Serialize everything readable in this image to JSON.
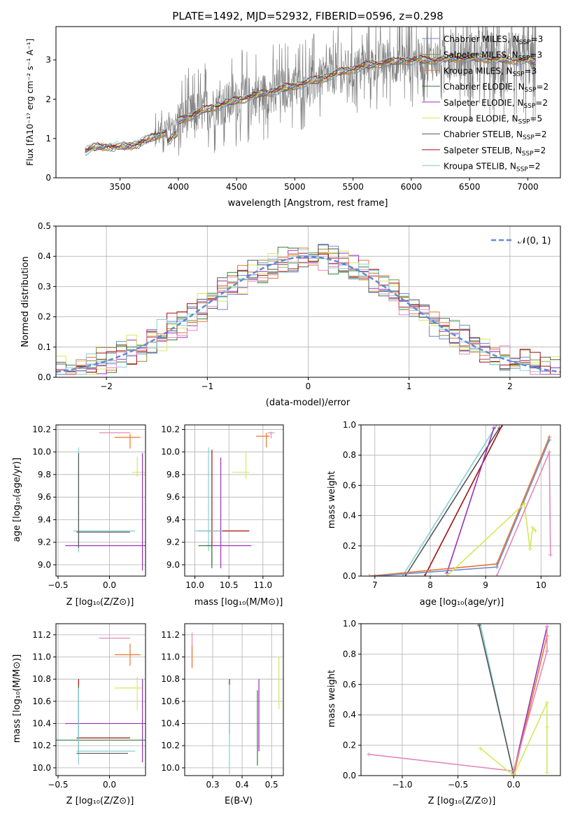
{
  "figure_title": "PLATE=1492, MJD=52932, FIBERID=0596, z=0.298",
  "colors": {
    "Chabrier MILES": "#6a8ad6",
    "Salpeter MILES": "#8a8a3a",
    "Kroupa MILES": "#e8762c",
    "Chabrier ELODIE": "#3a7a3a",
    "Salpeter ELODIE": "#9b30b8",
    "Kroupa ELODIE": "#d4e85a",
    "Chabrier STELIB": "#555555",
    "Salpeter STELIB": "#a01010",
    "Kroupa STELIB": "#86cfd6",
    "Extra": "#e08ab8",
    "data": "#808080",
    "normal_curve": "#5b8bd6"
  },
  "chart_data": [
    {
      "id": "spectrum",
      "type": "line",
      "title": "PLATE=1492, MJD=52932, FIBERID=0596, z=0.298",
      "xlabel": "wavelength [Angstrom, rest frame]",
      "ylabel": "Flux [fλ10⁻¹⁷ erg cm⁻² s⁻¹ A⁻¹]",
      "xlim": [
        2950,
        7280
      ],
      "ylim": [
        0,
        3.85
      ],
      "xticks": [
        "3500",
        "4000",
        "4500",
        "5000",
        "5500",
        "6000",
        "6500",
        "7000"
      ],
      "xtick_values": [
        3500,
        4000,
        4500,
        5000,
        5500,
        6000,
        6500,
        7000
      ],
      "yticks": [
        "0",
        "1",
        "2",
        "3"
      ],
      "ytick_values": [
        0,
        1,
        2,
        3
      ],
      "grid": false,
      "legend_position": "top-right",
      "legend": [
        {
          "name": "Chabrier MILES",
          "nssp": "3"
        },
        {
          "name": "Salpeter MILES",
          "nssp": "3"
        },
        {
          "name": "Kroupa MILES",
          "nssp": "3"
        },
        {
          "name": "Chabrier ELODIE",
          "nssp": "2"
        },
        {
          "name": "Salpeter ELODIE",
          "nssp": "2"
        },
        {
          "name": "Kroupa ELODIE",
          "nssp": "5"
        },
        {
          "name": "Chabrier STELIB",
          "nssp": "2"
        },
        {
          "name": "Salpeter STELIB",
          "nssp": "2"
        },
        {
          "name": "Kroupa STELIB",
          "nssp": "2"
        }
      ],
      "continuum": {
        "x": [
          3200,
          3300,
          3400,
          3500,
          3600,
          3700,
          3800,
          3900,
          4000,
          4200,
          4400,
          4600,
          4800,
          5000,
          5200,
          5400,
          5600,
          5800,
          6000,
          6200,
          6400,
          6600,
          6800,
          7000,
          7070
        ],
        "y": [
          0.7,
          0.78,
          0.8,
          0.78,
          0.82,
          0.92,
          1.05,
          1.2,
          1.45,
          1.7,
          1.9,
          2.05,
          2.2,
          2.35,
          2.5,
          2.7,
          2.85,
          2.95,
          3.0,
          3.0,
          3.05,
          3.05,
          3.0,
          3.0,
          2.95
        ]
      },
      "data_x_range": [
        3200,
        7070
      ]
    },
    {
      "id": "residuals",
      "type": "histogram",
      "xlabel": "(data-model)/error",
      "ylabel": "Normed distribution",
      "xlim": [
        -2.5,
        2.5
      ],
      "ylim": [
        0,
        0.5
      ],
      "xticks": [
        "−2",
        "−1",
        "0",
        "1",
        "2"
      ],
      "xtick_values": [
        -2,
        -1,
        0,
        1,
        2
      ],
      "yticks": [
        "0.0",
        "0.1",
        "0.2",
        "0.3",
        "0.4",
        "0.5"
      ],
      "ytick_values": [
        0,
        0.1,
        0.2,
        0.3,
        0.4,
        0.5
      ],
      "grid": true,
      "legend_position": "top-right",
      "legend": [
        {
          "name": "𝒩(0, 1)"
        }
      ],
      "bin_width": 0.1
    },
    {
      "id": "age_vs_Z",
      "type": "errorbar",
      "xlabel": "Z [log₁₀(Z/Z⊙)]",
      "ylabel": "age  [log₁₀(age/yr)]",
      "xlim": [
        -0.52,
        0.35
      ],
      "ylim": [
        8.9,
        10.24
      ],
      "xticks": [
        "−0.5",
        "0.0"
      ],
      "xtick_values": [
        -0.5,
        0
      ],
      "yticks": [
        "9.0",
        "9.2",
        "9.4",
        "9.6",
        "9.8",
        "10.0",
        "10.2"
      ],
      "ytick_values": [
        9.0,
        9.2,
        9.4,
        9.6,
        9.8,
        10.0,
        10.2
      ],
      "grid": true
    },
    {
      "id": "age_vs_mass",
      "type": "errorbar",
      "xlabel": "mass [log₁₀(M/M⊙)]",
      "ylabel": "",
      "xlim": [
        9.85,
        11.3
      ],
      "ylim": [
        8.9,
        10.24
      ],
      "xticks": [
        "10.0",
        "10.5",
        "11.0"
      ],
      "xtick_values": [
        10,
        10.5,
        11
      ],
      "yticks": [
        "9.0",
        "9.2",
        "9.4",
        "9.6",
        "9.8",
        "10.0",
        "10.2"
      ],
      "ytick_values": [
        9.0,
        9.2,
        9.4,
        9.6,
        9.8,
        10.0,
        10.2
      ],
      "grid": true
    },
    {
      "id": "massweight_vs_age",
      "type": "line",
      "xlabel": "age  [log₁₀(age/yr)]",
      "ylabel": "mass weight",
      "xlim": [
        6.75,
        10.35
      ],
      "ylim": [
        0,
        1
      ],
      "xticks": [
        "7",
        "8",
        "9",
        "10"
      ],
      "xtick_values": [
        7,
        8,
        9,
        10
      ],
      "yticks": [
        "0.0",
        "0.2",
        "0.4",
        "0.6",
        "0.8",
        "1.0"
      ],
      "ytick_values": [
        0,
        0.2,
        0.4,
        0.6,
        0.8,
        1.0
      ],
      "grid": true
    },
    {
      "id": "mass_vs_Z",
      "type": "errorbar",
      "xlabel": "Z [log₁₀(Z/Z⊙)]",
      "ylabel": "mass [log₁₀(M/M⊙)]",
      "xlim": [
        -0.52,
        0.35
      ],
      "ylim": [
        9.93,
        11.3
      ],
      "xticks": [
        "−0.5",
        "0.0"
      ],
      "xtick_values": [
        -0.5,
        0
      ],
      "yticks": [
        "10.0",
        "10.2",
        "10.4",
        "10.6",
        "10.8",
        "11.0",
        "11.2"
      ],
      "ytick_values": [
        10,
        10.2,
        10.4,
        10.6,
        10.8,
        11.0,
        11.2
      ],
      "grid": true
    },
    {
      "id": "mass_vs_ebv",
      "type": "errorbar",
      "xlabel": "E(B-V)",
      "ylabel": "",
      "xlim": [
        0.205,
        0.54
      ],
      "ylim": [
        9.93,
        11.3
      ],
      "xticks": [
        "0.3",
        "0.4",
        "0.5"
      ],
      "xtick_values": [
        0.3,
        0.4,
        0.5
      ],
      "yticks": [
        "10.0",
        "10.2",
        "10.4",
        "10.6",
        "10.8",
        "11.0",
        "11.2"
      ],
      "ytick_values": [
        10,
        10.2,
        10.4,
        10.6,
        10.8,
        11.0,
        11.2
      ],
      "grid": true
    },
    {
      "id": "massweight_vs_Z",
      "type": "line",
      "xlabel": "Z [log₁₀(Z/Z⊙)]",
      "ylabel": "mass weight",
      "xlim": [
        -1.37,
        0.42
      ],
      "ylim": [
        0,
        1
      ],
      "xticks": [
        "−1.0",
        "−0.5",
        "0.0"
      ],
      "xtick_values": [
        -1,
        -0.5,
        0
      ],
      "yticks": [
        "0.0",
        "0.2",
        "0.4",
        "0.6",
        "0.8",
        "1.0"
      ],
      "ytick_values": [
        0,
        0.2,
        0.4,
        0.6,
        0.8,
        1.0
      ],
      "grid": true
    }
  ]
}
